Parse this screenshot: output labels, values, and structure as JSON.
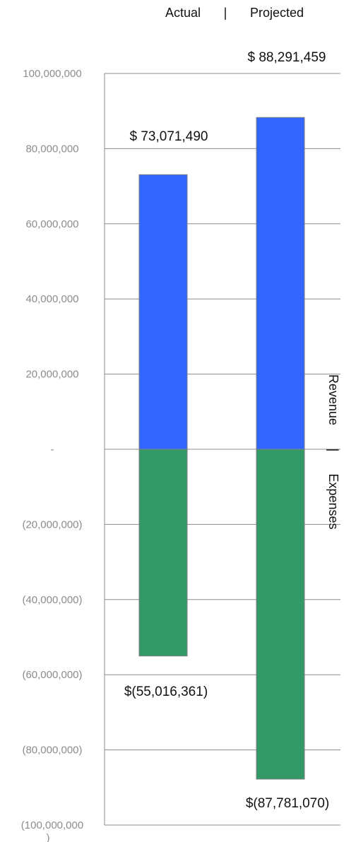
{
  "header": {
    "left": "Actual",
    "separator": "|",
    "right": "Projected"
  },
  "side_label": {
    "top": "Revenue",
    "separator": "|",
    "bottom": "Expenses"
  },
  "colors": {
    "revenue": "#3366ff",
    "expenses": "#339966",
    "grid": "#8c8c8c",
    "tick_text": "#8c8c8c"
  },
  "chart_data": {
    "type": "bar",
    "categories": [
      "Actual",
      "Projected"
    ],
    "series": [
      {
        "name": "Revenue",
        "values": [
          73071490,
          88291459
        ]
      },
      {
        "name": "Expenses",
        "values": [
          -55016361,
          -87781070
        ]
      }
    ],
    "ylim": [
      -100000000,
      100000000
    ],
    "yticks": [
      100000000,
      80000000,
      60000000,
      40000000,
      20000000,
      0,
      -20000000,
      -40000000,
      -60000000,
      -80000000,
      -100000000
    ],
    "ytick_labels": [
      "100,000,000",
      "80,000,000",
      "60,000,000",
      "40,000,000",
      "20,000,000",
      "-",
      "(20,000,000)",
      "(40,000,000)",
      "(60,000,000)",
      "(80,000,000)",
      "(100,000,000\n)"
    ],
    "data_labels": {
      "revenue": [
        "$ 73,071,490",
        "$ 88,291,459"
      ],
      "expenses": [
        "$(55,016,361)",
        "$(87,781,070)"
      ]
    },
    "grid": true,
    "stacked": true
  }
}
